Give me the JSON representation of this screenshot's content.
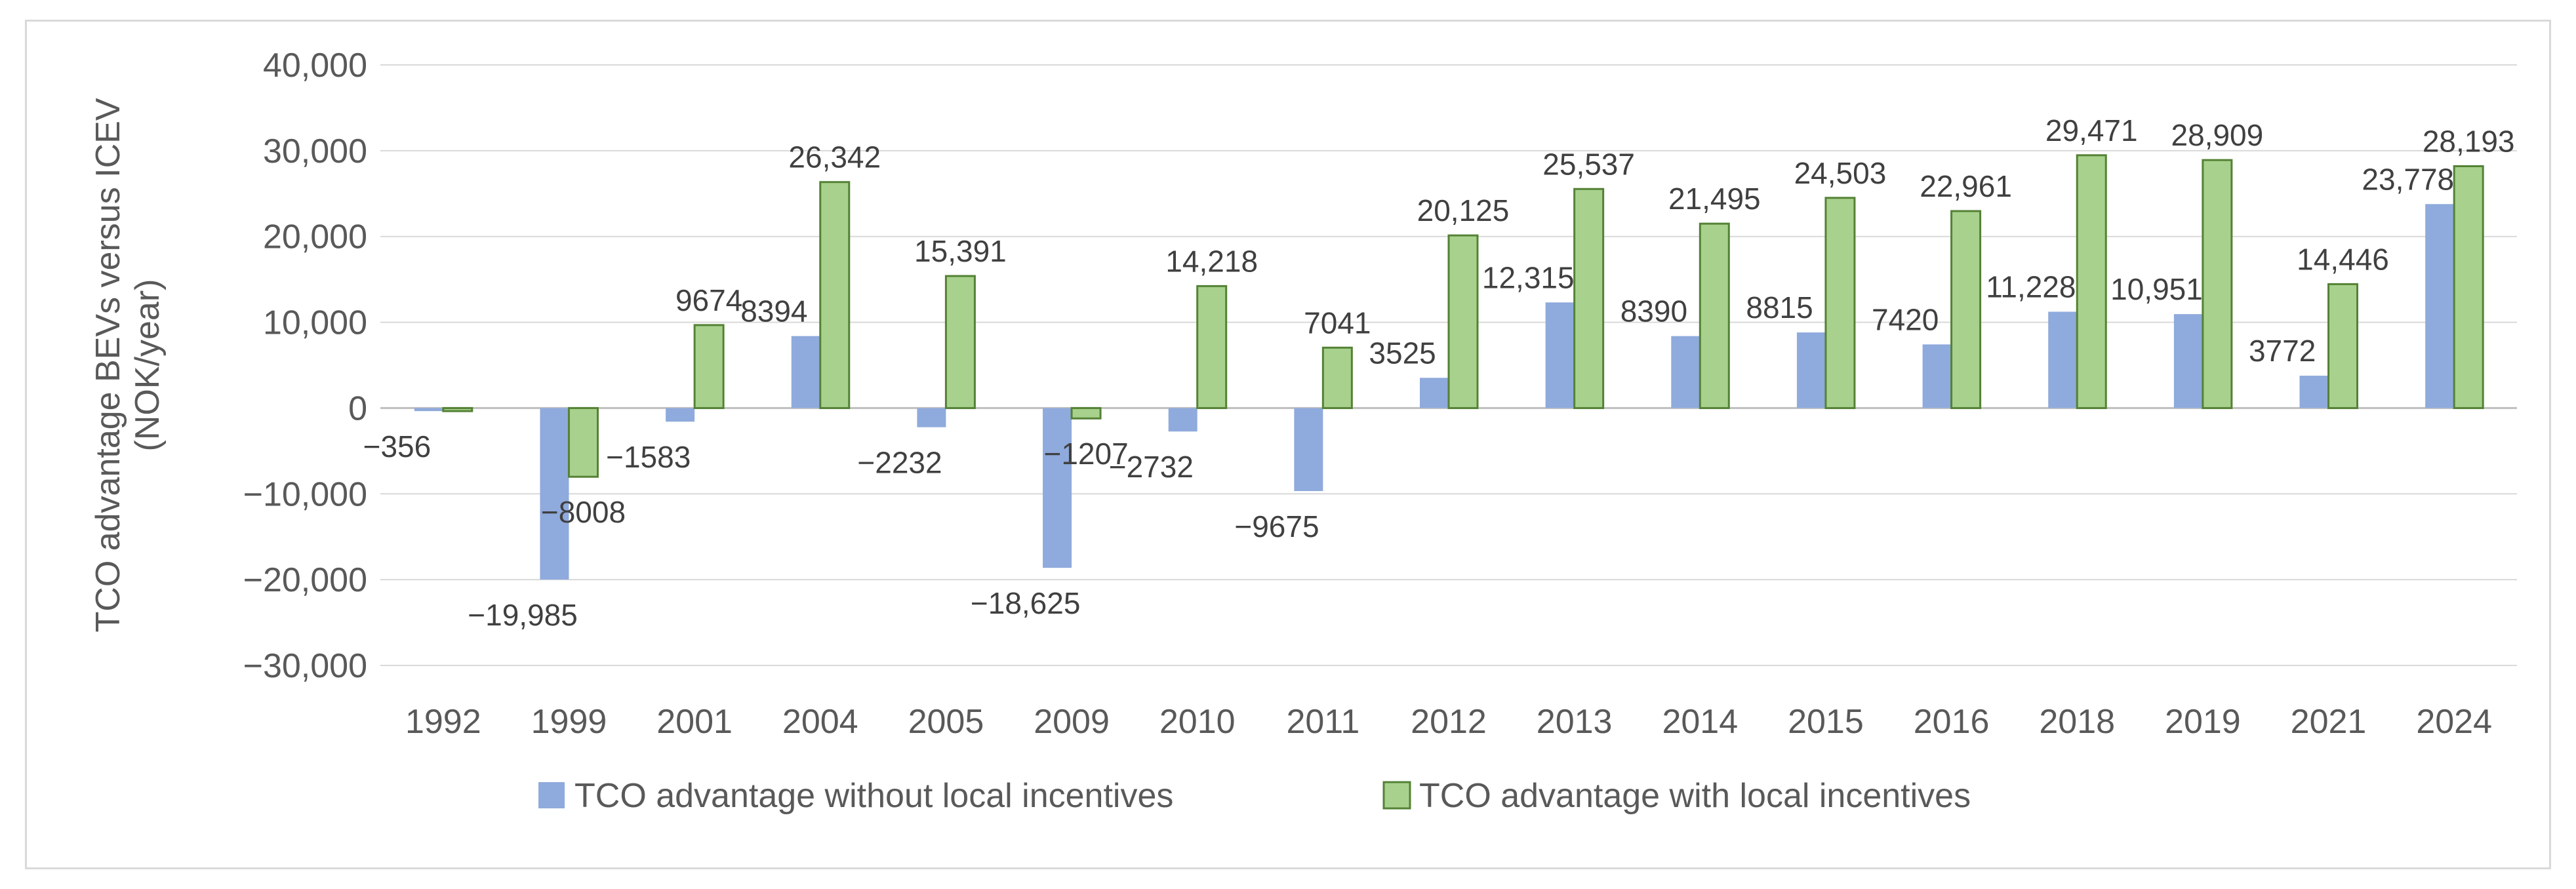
{
  "chart_data": {
    "type": "bar",
    "title": "",
    "ylabel": [
      "TCO advantage BEVs versus ICEV",
      "(NOK/year)"
    ],
    "xlabel": "",
    "ylim": [
      -30000,
      40000
    ],
    "yticks": [
      40000,
      30000,
      20000,
      10000,
      0,
      -10000,
      -20000,
      -30000
    ],
    "ytick_labels": [
      "40,000",
      "30,000",
      "20,000",
      "10,000",
      "0",
      "−10,000",
      "−20,000",
      "−30,000"
    ],
    "grid": true,
    "legend_position": "bottom",
    "categories": [
      "1992",
      "1999",
      "2001",
      "2004",
      "2005",
      "2009",
      "2010",
      "2011",
      "2012",
      "2013",
      "2014",
      "2015",
      "2016",
      "2018",
      "2019",
      "2021",
      "2024"
    ],
    "series": [
      {
        "name": "TCO advantage without local incentives",
        "color": "#8faadc",
        "values": [
          -356,
          -19985,
          -1583,
          8394,
          -2232,
          -18625,
          -2732,
          -9675,
          3525,
          12315,
          8390,
          8815,
          7420,
          11228,
          10951,
          3772,
          23778
        ],
        "labels": [
          "−356",
          "−19,985",
          "−1583",
          "8394",
          "−2232",
          "−18,625",
          "−2732",
          "−9675",
          "3525",
          "12,315",
          "8390",
          "8815",
          "7420",
          "11,228",
          "10,951",
          "3772",
          "23,778"
        ]
      },
      {
        "name": "TCO advantage with local incentives",
        "color": "#a9d18e",
        "stroke": "#548235",
        "values": [
          -356,
          -8008,
          9674,
          26342,
          15391,
          -1207,
          14218,
          7041,
          20125,
          25537,
          21495,
          24503,
          22961,
          29471,
          28909,
          14446,
          28193
        ],
        "labels": [
          "",
          "−8008",
          "9674",
          "26,342",
          "15,391",
          "−1207",
          "14,218",
          "7041",
          "20,125",
          "25,537",
          "21,495",
          "24,503",
          "22,961",
          "29,471",
          "28,909",
          "14,446",
          "28,193"
        ]
      }
    ]
  }
}
